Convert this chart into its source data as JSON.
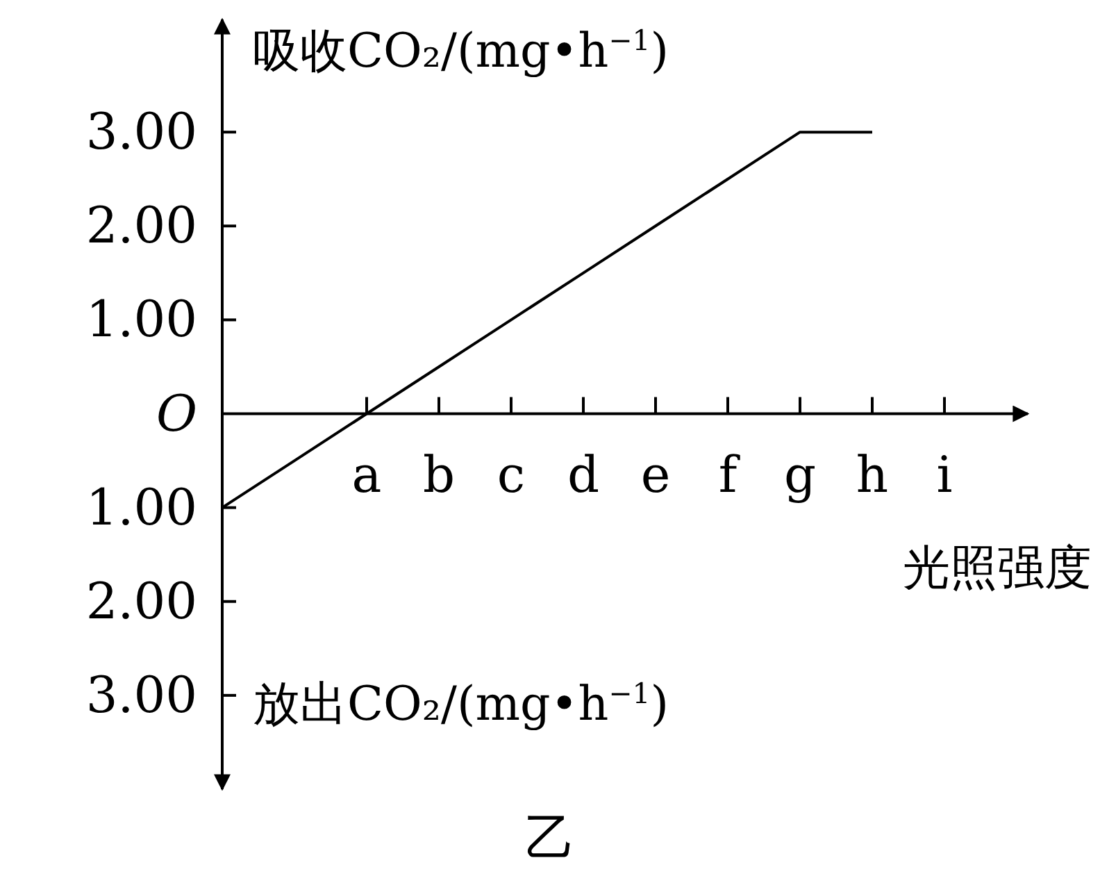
{
  "chart_data": {
    "type": "line",
    "title": "乙",
    "xlabel": "光照强度",
    "ylabel": "吸收CO₂/(mg•h$^{−1}$)",
    "annotations": [
      "放出CO₂/(mg•h$^{−1}$)"
    ],
    "categories": [
      null,
      null,
      "a",
      "b",
      "c",
      "d",
      "e",
      "f",
      "g",
      "h",
      "i"
    ],
    "series": [
      {
        "color": "#000000",
        "values": [
          -1,
          -0.5,
          0,
          0.5,
          1,
          1.5,
          2,
          2.5,
          3,
          3,
          null
        ]
      }
    ],
    "ylim": [
      -4.0,
      4.2
    ],
    "yticks": [
      {
        "value": 3,
        "label": "3.00"
      },
      {
        "value": 2,
        "label": "2.00"
      },
      {
        "value": 1,
        "label": "1.00"
      },
      {
        "value": 0,
        "label": "O"
      },
      {
        "value": -1,
        "label": "1.00"
      },
      {
        "value": -2,
        "label": "2.00"
      },
      {
        "value": -3,
        "label": "3.00"
      }
    ]
  }
}
